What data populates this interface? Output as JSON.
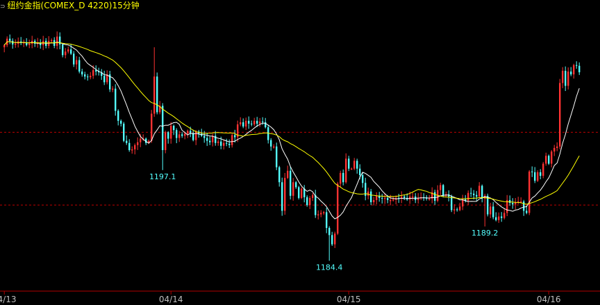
{
  "title": {
    "marker": "⊃",
    "text": "纽约金指(COMEX_D 4220)15分钟"
  },
  "colors": {
    "background": "#000000",
    "up": "#ff3232",
    "down": "#54ffff",
    "ma_short": "#ffffff",
    "ma_long": "#ffff00",
    "reference_line": "#c00000",
    "axis": "#b00000",
    "date_label": "#c0c0c0",
    "price_label": "#54ffff"
  },
  "chart_data": {
    "type": "candlestick",
    "title": "纽约金指(COMEX_D 4220)15分钟",
    "x_date_labels": [
      {
        "label": "04/13",
        "bar": 0
      },
      {
        "label": "04/14",
        "bar": 60
      },
      {
        "label": "04/15",
        "bar": 124
      },
      {
        "label": "04/16",
        "bar": 196
      }
    ],
    "extreme_labels": [
      {
        "text": "1197.1",
        "value": 1197.1,
        "bar": 57
      },
      {
        "text": "1184.4",
        "value": 1184.4,
        "bar": 117
      },
      {
        "text": "1189.2",
        "value": 1189.2,
        "bar": 173
      }
    ],
    "reference_lines": [
      1202.4,
      1192.2
    ],
    "ylim": [
      1182.0,
      1218.0
    ],
    "closes": [
      1214.6,
      1215.5,
      1215.2,
      1214.7,
      1214.8,
      1215.1,
      1214.9,
      1215.0,
      1214.6,
      1214.8,
      1215.2,
      1214.8,
      1214.9,
      1214.6,
      1215.2,
      1214.5,
      1215.2,
      1215.3,
      1214.5,
      1215.8,
      1214.7,
      1213.2,
      1213.7,
      1214.0,
      1213.4,
      1211.9,
      1212.5,
      1210.9,
      1210.5,
      1210.2,
      1210.1,
      1210.3,
      1211.1,
      1210.9,
      1210.8,
      1210.3,
      1209.4,
      1210.5,
      1208.4,
      1208.5,
      1205.4,
      1204.0,
      1203.6,
      1201.2,
      1200.9,
      1199.9,
      1200.0,
      1200.6,
      1201.0,
      1201.5,
      1201.5,
      1200.9,
      1201.2,
      1205.0,
      1210.2,
      1205.2,
      1206.1,
      1199.9,
      1202.4,
      1201.5,
      1203.3,
      1202.7,
      1201.6,
      1202.1,
      1201.9,
      1202.2,
      1202.6,
      1202.3,
      1201.3,
      1202.5,
      1202.2,
      1201.9,
      1201.6,
      1201.2,
      1201.0,
      1201.9,
      1200.9,
      1201.1,
      1200.5,
      1200.9,
      1200.8,
      1200.6,
      1202.0,
      1201.7,
      1203.5,
      1203.8,
      1203.2,
      1204.0,
      1203.6,
      1203.5,
      1204.0,
      1203.6,
      1203.9,
      1203.8,
      1203.1,
      1201.3,
      1200.4,
      1200.4,
      1197.5,
      1195.4,
      1191.4,
      1196.0,
      1197.0,
      1193.5,
      1195.4,
      1194.7,
      1193.2,
      1194.5,
      1193.3,
      1192.2,
      1193.2,
      1193.6,
      1190.8,
      1190.9,
      1191.1,
      1191.2,
      1189.0,
      1188.0,
      1186.7,
      1188.2,
      1195.2,
      1196.7,
      1195.4,
      1198.7,
      1197.3,
      1197.3,
      1198.4,
      1197.3,
      1196.4,
      1195.3,
      1193.5,
      1194.1,
      1192.6,
      1192.9,
      1193.5,
      1193.2,
      1193.1,
      1193.2,
      1192.9,
      1192.9,
      1193.0,
      1193.2,
      1193.1,
      1193.4,
      1193.2,
      1193.0,
      1193.4,
      1193.4,
      1192.9,
      1193.2,
      1193.3,
      1193.2,
      1193.1,
      1193.1,
      1194.0,
      1192.8,
      1194.3,
      1195.0,
      1193.5,
      1193.7,
      1193.4,
      1191.5,
      1191.6,
      1191.5,
      1192.0,
      1193.0,
      1192.8,
      1193.9,
      1193.8,
      1193.6,
      1193.4,
      1194.9,
      1193.1,
      1193.5,
      1190.9,
      1192.0,
      1190.5,
      1190.1,
      1190.6,
      1190.4,
      1191.1,
      1192.9,
      1192.5,
      1192.3,
      1192.6,
      1192.7,
      1192.7,
      1191.4,
      1191.1,
      1196.9,
      1196.8,
      1195.6,
      1196.8,
      1196.3,
      1198.0,
      1199.1,
      1198.0,
      1199.7,
      1200.2,
      1200.4,
      1209.3,
      1211.0,
      1208.9,
      1210.9,
      1210.5,
      1211.8,
      1211.7,
      1210.8
    ]
  }
}
